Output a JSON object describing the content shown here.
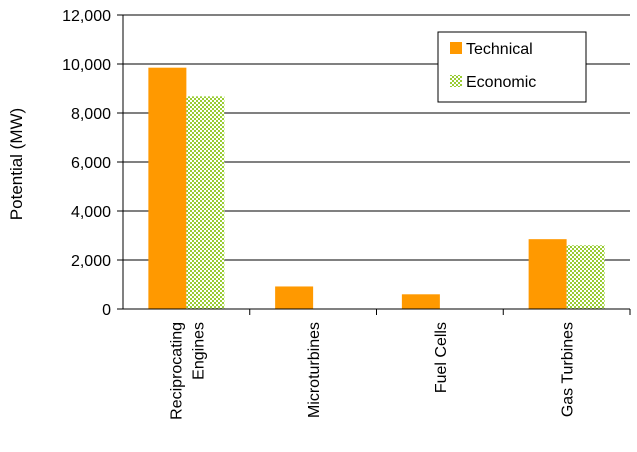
{
  "chart_data": {
    "type": "bar",
    "categories": [
      "Reciprocating Engines",
      "Microturbines",
      "Fuel Cells",
      "Gas Turbines"
    ],
    "category_lines": [
      [
        "Reciprocating",
        "Engines"
      ],
      [
        "Microturbines"
      ],
      [
        "Fuel Cells"
      ],
      [
        "Gas Turbines"
      ]
    ],
    "series": [
      {
        "name": "Technical",
        "values": [
          9850,
          920,
          600,
          2850
        ],
        "color": "#ff9900",
        "pattern": "solid"
      },
      {
        "name": "Economic",
        "values": [
          8680,
          0,
          0,
          2600
        ],
        "color": "#99cc33",
        "pattern": "checker"
      }
    ],
    "title": "",
    "xlabel": "",
    "ylabel": "Potential (MW)",
    "ylim": [
      0,
      12000
    ],
    "yticks": [
      0,
      2000,
      4000,
      6000,
      8000,
      10000,
      12000
    ],
    "ytick_labels": [
      "0",
      "2,000",
      "4,000",
      "6,000",
      "8,000",
      "10,000",
      "12,000"
    ],
    "grid": true,
    "legend_position": "top-right"
  }
}
